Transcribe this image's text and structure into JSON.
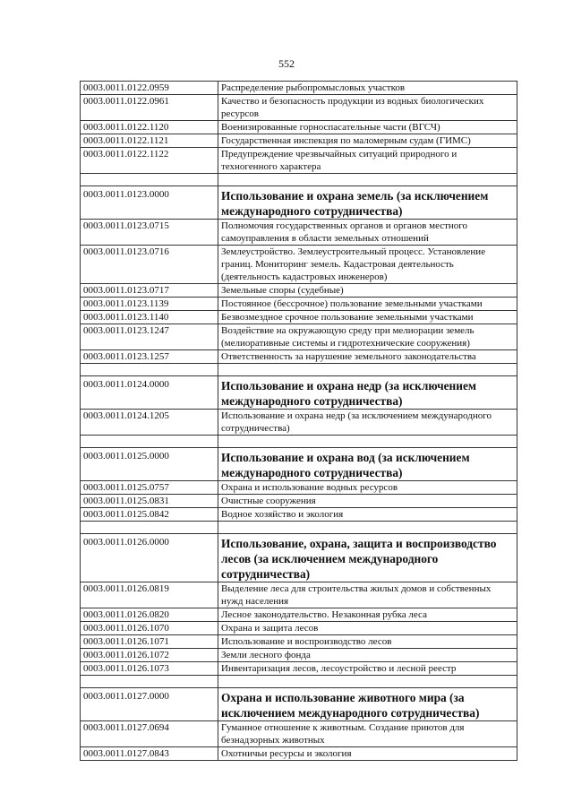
{
  "page_number": "552",
  "rows": [
    {
      "code": "0003.0011.0122.0959",
      "text": "Распределение рыбопромысловых участков"
    },
    {
      "code": "0003.0011.0122.0961",
      "text": "Качество и безопасность продукции из водных биологических ресурсов"
    },
    {
      "code": "0003.0011.0122.1120",
      "text": "Военизированные горноспасательные части (ВГСЧ)"
    },
    {
      "code": "0003.0011.0122.1121",
      "text": "Государственная инспекция по маломерным судам (ГИМС)"
    },
    {
      "code": "0003.0011.0122.1122",
      "text": "Предупреждение чрезвычайных ситуаций природного и техногенного характера"
    },
    {
      "code": "",
      "text": ""
    },
    {
      "code": "0003.0011.0123.0000",
      "text": "Использование и охрана земель (за исключением международного сотрудничества)",
      "bold": true
    },
    {
      "code": "0003.0011.0123.0715",
      "text": "Полномочия государственных органов и органов местного самоуправления в области земельных отношений"
    },
    {
      "code": "0003.0011.0123.0716",
      "text": "Землеустройство. Землеустроительный процесс. Установление границ. Мониторинг земель. Кадастровая деятельность (деятельность кадастровых инженеров)"
    },
    {
      "code": "0003.0011.0123.0717",
      "text": "Земельные споры (судебные)"
    },
    {
      "code": "0003.0011.0123.1139",
      "text": "Постоянное (бессрочное) пользование земельными участками"
    },
    {
      "code": "0003.0011.0123.1140",
      "text": "Безвозмездное срочное пользование земельными участками"
    },
    {
      "code": "0003.0011.0123.1247",
      "text": "Воздействие на окружающую среду при мелиорации земель (мелиоративные системы и гидротехнические сооружения)"
    },
    {
      "code": "0003.0011.0123.1257",
      "text": "Ответственность за нарушение земельного законодательства"
    },
    {
      "code": "",
      "text": ""
    },
    {
      "code": "0003.0011.0124.0000",
      "text": "Использование и охрана недр (за исключением международного сотрудничества)",
      "bold": true
    },
    {
      "code": "0003.0011.0124.1205",
      "text": "Использование и охрана недр (за исключением международного сотрудничества)"
    },
    {
      "code": "",
      "text": ""
    },
    {
      "code": "0003.0011.0125.0000",
      "text": "Использование и охрана вод (за исключением международного сотрудничества)",
      "bold": true
    },
    {
      "code": "0003.0011.0125.0757",
      "text": "Охрана и использование водных ресурсов"
    },
    {
      "code": "0003.0011.0125.0831",
      "text": "Очистные сооружения"
    },
    {
      "code": "0003.0011.0125.0842",
      "text": "Водное хозяйство и экология"
    },
    {
      "code": "",
      "text": ""
    },
    {
      "code": "0003.0011.0126.0000",
      "text": "Использование, охрана, защита и воспроизводство лесов (за исключением международного сотрудничества)",
      "bold": true
    },
    {
      "code": "0003.0011.0126.0819",
      "text": "Выделение леса для строительства жилых домов и собственных нужд населения"
    },
    {
      "code": "0003.0011.0126.0820",
      "text": "Лесное законодательство. Незаконная рубка леса"
    },
    {
      "code": "0003.0011.0126.1070",
      "text": "Охрана и защита лесов"
    },
    {
      "code": "0003.0011.0126.1071",
      "text": "Использование и воспроизводство лесов"
    },
    {
      "code": "0003.0011.0126.1072",
      "text": "Земли лесного фонда"
    },
    {
      "code": "0003.0011.0126.1073",
      "text": "Инвентаризация лесов, лесоустройство и лесной реестр"
    },
    {
      "code": "",
      "text": ""
    },
    {
      "code": "0003.0011.0127.0000",
      "text": "Охрана и использование животного мира (за исключением международного сотрудничества)",
      "bold": true
    },
    {
      "code": "0003.0011.0127.0694",
      "text": "Гуманное отношение к животным. Создание приютов для безнадзорных животных"
    },
    {
      "code": "0003.0011.0127.0843",
      "text": "Охотничьи ресурсы и экология"
    }
  ]
}
